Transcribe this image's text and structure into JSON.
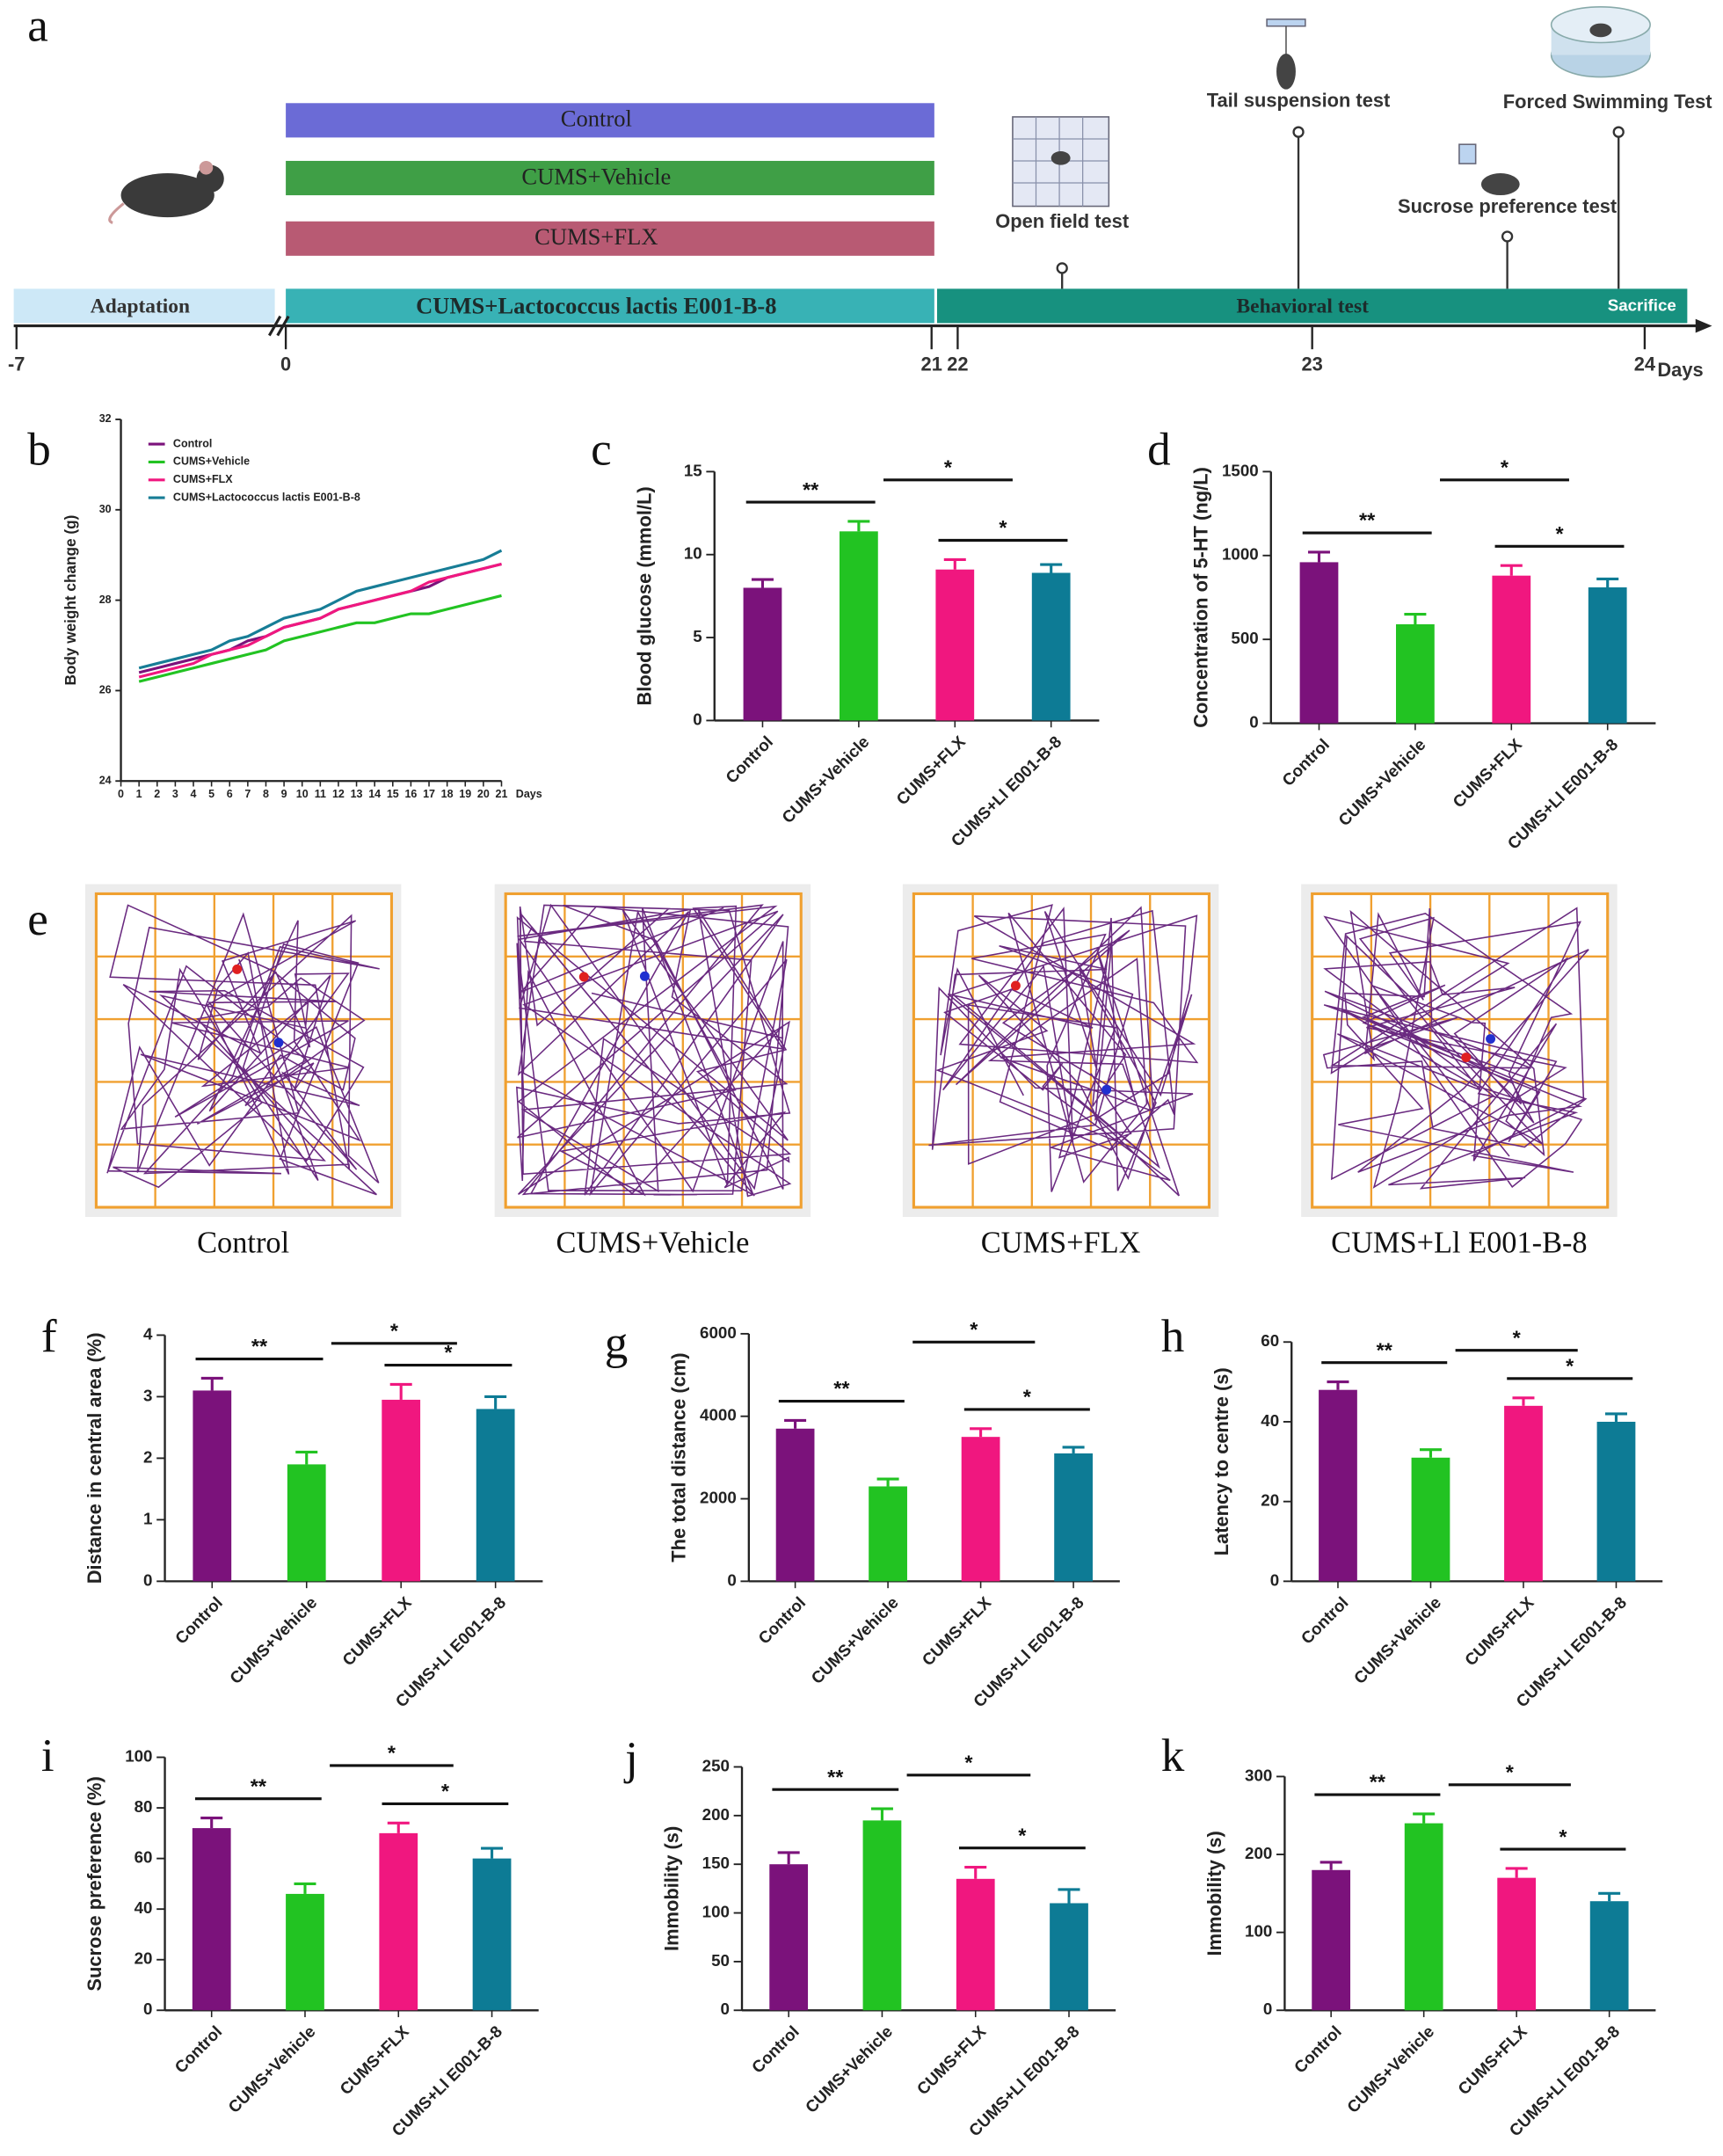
{
  "panel_labels": [
    "a",
    "b",
    "c",
    "d",
    "e",
    "f",
    "g",
    "h",
    "i",
    "j",
    "k"
  ],
  "timeline": {
    "groups": [
      "Control",
      "CUMS+Vehicle",
      "CUMS+FLX"
    ],
    "phases": [
      "Adaptation",
      "CUMS+Lactococcus lactis E001-B-8",
      "Behavioral test",
      "Sacrifice"
    ],
    "tests": [
      "Open field test",
      "Tail suspension test",
      "Sucrose preference test",
      "Forced Swimming Test"
    ],
    "days": [
      -7,
      0,
      21,
      22,
      23,
      24
    ],
    "days_label": "Days"
  },
  "open_field": {
    "captions": [
      "Control",
      "CUMS+Vehicle",
      "CUMS+FLX",
      "CUMS+Ll E001-B-8"
    ]
  },
  "chart_data": [
    {
      "type": "line",
      "ylabel": "Body weight change (g)",
      "xlabel": "Days",
      "x": [
        1,
        2,
        3,
        4,
        5,
        6,
        7,
        8,
        9,
        10,
        11,
        12,
        13,
        14,
        15,
        16,
        17,
        18,
        19,
        20,
        21
      ],
      "xlim": [
        0,
        21
      ],
      "xticks": [
        0,
        1,
        2,
        3,
        4,
        5,
        6,
        7,
        8,
        9,
        10,
        11,
        12,
        13,
        14,
        15,
        16,
        17,
        18,
        19,
        20,
        21
      ],
      "ylim": [
        24,
        32
      ],
      "yticks": [
        24,
        26,
        28,
        30,
        32
      ],
      "series": [
        {
          "name": "Control",
          "color": "#7b127b",
          "values": [
            26.4,
            26.5,
            26.6,
            26.7,
            26.8,
            26.9,
            27.1,
            27.2,
            27.4,
            27.5,
            27.6,
            27.8,
            27.9,
            28.0,
            28.1,
            28.2,
            28.3,
            28.5,
            28.6,
            28.7,
            28.8
          ]
        },
        {
          "name": "CUMS+Vehicle",
          "color": "#22c322",
          "values": [
            26.2,
            26.3,
            26.4,
            26.5,
            26.6,
            26.7,
            26.8,
            26.9,
            27.1,
            27.2,
            27.3,
            27.4,
            27.5,
            27.5,
            27.6,
            27.7,
            27.7,
            27.8,
            27.9,
            28.0,
            28.1
          ]
        },
        {
          "name": "CUMS+FLX",
          "color": "#f0177f",
          "values": [
            26.3,
            26.4,
            26.5,
            26.6,
            26.8,
            26.9,
            27.0,
            27.2,
            27.4,
            27.5,
            27.6,
            27.8,
            27.9,
            28.0,
            28.1,
            28.2,
            28.4,
            28.5,
            28.6,
            28.7,
            28.8
          ]
        },
        {
          "name": "CUMS+Lactococcus lactis E001-B-8",
          "color": "#177d96",
          "values": [
            26.5,
            26.6,
            26.7,
            26.8,
            26.9,
            27.1,
            27.2,
            27.4,
            27.6,
            27.7,
            27.8,
            28.0,
            28.2,
            28.3,
            28.4,
            28.5,
            28.6,
            28.7,
            28.8,
            28.9,
            29.1
          ]
        }
      ]
    },
    {
      "type": "bar",
      "ylabel": "Blood glucose (mmol/L)",
      "categories": [
        "Control",
        "CUMS+Vehicle",
        "CUMS+FLX",
        "CUMS+Ll E001-B-8"
      ],
      "values": [
        8.0,
        11.4,
        9.1,
        8.9
      ],
      "errors": [
        0.5,
        0.6,
        0.6,
        0.5
      ],
      "colors": [
        "#7b127b",
        "#22c322",
        "#f0177f",
        "#0d7b95"
      ],
      "ylim": [
        0,
        15
      ],
      "yticks": [
        0,
        5,
        10,
        15
      ],
      "annotations": [
        {
          "label": "**",
          "from": 0,
          "to": 1
        },
        {
          "label": "*",
          "from": 1,
          "to": 3
        },
        {
          "label": "*",
          "from": 2,
          "to": 3
        }
      ]
    },
    {
      "type": "bar",
      "ylabel": "Concentration of 5-HT (ng/L)",
      "categories": [
        "Control",
        "CUMS+Vehicle",
        "CUMS+FLX",
        "CUMS+Ll E001-B-8"
      ],
      "values": [
        960,
        590,
        880,
        810
      ],
      "errors": [
        60,
        60,
        60,
        50
      ],
      "colors": [
        "#7b127b",
        "#22c322",
        "#f0177f",
        "#0d7b95"
      ],
      "ylim": [
        0,
        1500
      ],
      "yticks": [
        0,
        500,
        1000,
        1500
      ],
      "annotations": [
        {
          "label": "**",
          "from": 0,
          "to": 1
        },
        {
          "label": "*",
          "from": 1,
          "to": 3
        },
        {
          "label": "*",
          "from": 2,
          "to": 3
        }
      ]
    },
    {
      "type": "bar",
      "ylabel": "Distance in central area (%)",
      "categories": [
        "Control",
        "CUMS+Vehicle",
        "CUMS+FLX",
        "CUMS+Ll E001-B-8"
      ],
      "values": [
        3.1,
        1.9,
        2.95,
        2.8
      ],
      "errors": [
        0.2,
        0.2,
        0.25,
        0.2
      ],
      "colors": [
        "#7b127b",
        "#22c322",
        "#f0177f",
        "#0d7b95"
      ],
      "ylim": [
        0,
        4
      ],
      "yticks": [
        0,
        1,
        2,
        3,
        4
      ],
      "annotations": [
        {
          "label": "**",
          "from": 0,
          "to": 1
        },
        {
          "label": "*",
          "from": 1,
          "to": 3
        },
        {
          "label": "*",
          "from": 2,
          "to": 3
        }
      ]
    },
    {
      "type": "bar",
      "ylabel": "The total distance (cm)",
      "categories": [
        "Control",
        "CUMS+Vehicle",
        "CUMS+FLX",
        "CUMS+Ll E001-B-8"
      ],
      "values": [
        3700,
        2300,
        3500,
        3100
      ],
      "errors": [
        200,
        180,
        200,
        150
      ],
      "colors": [
        "#7b127b",
        "#22c322",
        "#f0177f",
        "#0d7b95"
      ],
      "ylim": [
        0,
        6000
      ],
      "yticks": [
        0,
        2000,
        4000,
        6000
      ],
      "annotations": [
        {
          "label": "**",
          "from": 0,
          "to": 1
        },
        {
          "label": "*",
          "from": 1,
          "to": 3
        },
        {
          "label": "*",
          "from": 2,
          "to": 3
        }
      ]
    },
    {
      "type": "bar",
      "ylabel": "Latency to centre (s)",
      "categories": [
        "Control",
        "CUMS+Vehicle",
        "CUMS+FLX",
        "CUMS+Ll E001-B-8"
      ],
      "values": [
        48,
        31,
        44,
        40
      ],
      "errors": [
        2,
        2,
        2,
        2
      ],
      "colors": [
        "#7b127b",
        "#22c322",
        "#f0177f",
        "#0d7b95"
      ],
      "ylim": [
        0,
        60
      ],
      "yticks": [
        0,
        20,
        40,
        60
      ],
      "annotations": [
        {
          "label": "**",
          "from": 0,
          "to": 1
        },
        {
          "label": "*",
          "from": 1,
          "to": 3
        },
        {
          "label": "*",
          "from": 2,
          "to": 3
        }
      ]
    },
    {
      "type": "bar",
      "ylabel": "Sucrose preference (%)",
      "categories": [
        "Control",
        "CUMS+Vehicle",
        "CUMS+FLX",
        "CUMS+Ll E001-B-8"
      ],
      "values": [
        72,
        46,
        70,
        60
      ],
      "errors": [
        4,
        4,
        4,
        4
      ],
      "colors": [
        "#7b127b",
        "#22c322",
        "#f0177f",
        "#0d7b95"
      ],
      "ylim": [
        0,
        100
      ],
      "yticks": [
        0,
        20,
        40,
        60,
        80,
        100
      ],
      "annotations": [
        {
          "label": "**",
          "from": 0,
          "to": 1
        },
        {
          "label": "*",
          "from": 1,
          "to": 3
        },
        {
          "label": "*",
          "from": 2,
          "to": 3
        }
      ]
    },
    {
      "type": "bar",
      "ylabel": "Immobility (s)",
      "categories": [
        "Control",
        "CUMS+Vehicle",
        "CUMS+FLX",
        "CUMS+Ll E001-B-8"
      ],
      "values": [
        150,
        195,
        135,
        110
      ],
      "errors": [
        12,
        12,
        12,
        14
      ],
      "colors": [
        "#7b127b",
        "#22c322",
        "#f0177f",
        "#0d7b95"
      ],
      "ylim": [
        0,
        250
      ],
      "yticks": [
        0,
        50,
        100,
        150,
        200,
        250
      ],
      "annotations": [
        {
          "label": "**",
          "from": 0,
          "to": 1
        },
        {
          "label": "*",
          "from": 1,
          "to": 3
        },
        {
          "label": "*",
          "from": 2,
          "to": 3
        }
      ]
    },
    {
      "type": "bar",
      "ylabel": "Immobility (s)",
      "categories": [
        "Control",
        "CUMS+Vehicle",
        "CUMS+FLX",
        "CUMS+Ll E001-B-8"
      ],
      "values": [
        180,
        240,
        170,
        140
      ],
      "errors": [
        10,
        12,
        12,
        10
      ],
      "colors": [
        "#7b127b",
        "#22c322",
        "#f0177f",
        "#0d7b95"
      ],
      "ylim": [
        0,
        300
      ],
      "yticks": [
        0,
        100,
        200,
        300
      ],
      "annotations": [
        {
          "label": "**",
          "from": 0,
          "to": 1
        },
        {
          "label": "*",
          "from": 1,
          "to": 3
        },
        {
          "label": "*",
          "from": 2,
          "to": 3
        }
      ]
    }
  ]
}
